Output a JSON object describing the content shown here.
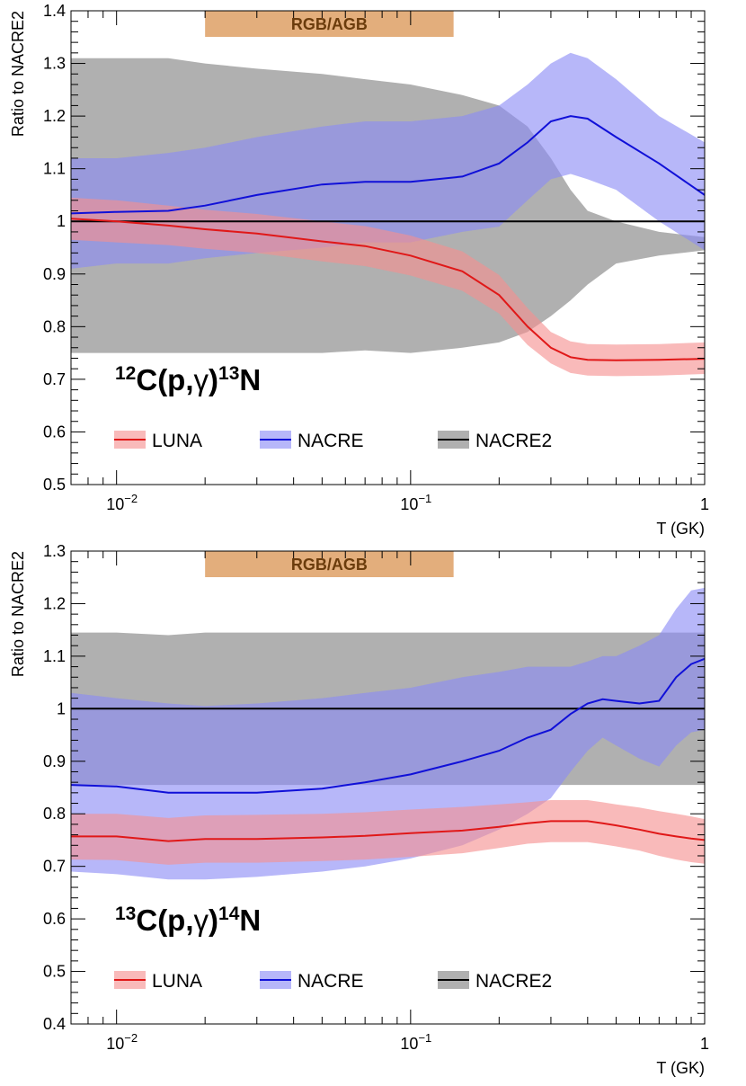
{
  "chart_data": [
    {
      "type": "area",
      "reaction": {
        "mass_a": "12",
        "base_a": "C(p,",
        "gamma": "γ",
        "close": ")",
        "mass_b": "13",
        "base_b": "N"
      },
      "ylabel": "Ratio to NACRE2",
      "xlabel": "T (GK)",
      "xscale": "log",
      "xlim": [
        0.007,
        1
      ],
      "ylim": [
        0.5,
        1.4
      ],
      "yticks": [
        0.5,
        0.6,
        0.7,
        0.8,
        0.9,
        1.0,
        1.1,
        1.2,
        1.3,
        1.4
      ],
      "ytick_labels": [
        "0.5",
        "0.6",
        "0.7",
        "0.8",
        "0.9",
        "1",
        "1.1",
        "1.2",
        "1.3",
        "1.4"
      ],
      "xtick_labels": [
        {
          "value": 0.01,
          "base": "10",
          "exp": "−2"
        },
        {
          "value": 0.1,
          "base": "10",
          "exp": "−1"
        },
        {
          "value": 1,
          "base": "1",
          "exp": ""
        }
      ],
      "banner": {
        "label": "RGB/AGB",
        "xrange": [
          0.02,
          0.14
        ],
        "color": "#e3ae7c",
        "text_color": "#6b3c0c"
      },
      "legend": [
        "LUNA",
        "NACRE",
        "NACRE2"
      ],
      "series": [
        {
          "name": "NACRE2",
          "line_color": "#000000",
          "band_color": "#b0b0b0",
          "x": [
            0.007,
            0.01,
            0.015,
            0.02,
            0.03,
            0.05,
            0.07,
            0.1,
            0.15,
            0.2,
            0.25,
            0.3,
            0.35,
            0.4,
            0.5,
            0.7,
            1.0
          ],
          "center": [
            1,
            1,
            1,
            1,
            1,
            1,
            1,
            1,
            1,
            1,
            1,
            1,
            1,
            1,
            1,
            1,
            1
          ],
          "lower": [
            0.75,
            0.75,
            0.75,
            0.75,
            0.75,
            0.75,
            0.755,
            0.75,
            0.76,
            0.77,
            0.79,
            0.82,
            0.85,
            0.88,
            0.92,
            0.935,
            0.945
          ],
          "upper": [
            1.31,
            1.31,
            1.31,
            1.3,
            1.29,
            1.28,
            1.27,
            1.26,
            1.24,
            1.22,
            1.18,
            1.12,
            1.06,
            1.02,
            1.0,
            0.98,
            0.97
          ]
        },
        {
          "name": "NACRE",
          "line_color": "#1010d8",
          "band_color": "#8a8af5",
          "x": [
            0.007,
            0.01,
            0.015,
            0.02,
            0.03,
            0.05,
            0.07,
            0.1,
            0.15,
            0.2,
            0.25,
            0.3,
            0.35,
            0.4,
            0.5,
            0.7,
            1.0
          ],
          "center": [
            1.015,
            1.018,
            1.02,
            1.03,
            1.05,
            1.07,
            1.075,
            1.075,
            1.085,
            1.11,
            1.15,
            1.19,
            1.2,
            1.195,
            1.16,
            1.11,
            1.05
          ],
          "lower": [
            0.91,
            0.92,
            0.92,
            0.93,
            0.94,
            0.95,
            0.96,
            0.96,
            0.98,
            0.99,
            1.04,
            1.08,
            1.09,
            1.08,
            1.06,
            1.0,
            0.945
          ],
          "upper": [
            1.12,
            1.12,
            1.13,
            1.14,
            1.16,
            1.18,
            1.19,
            1.19,
            1.2,
            1.22,
            1.26,
            1.3,
            1.32,
            1.31,
            1.27,
            1.2,
            1.15
          ]
        },
        {
          "name": "LUNA",
          "line_color": "#e01818",
          "band_color": "#f59090",
          "x": [
            0.007,
            0.01,
            0.015,
            0.02,
            0.03,
            0.05,
            0.07,
            0.1,
            0.15,
            0.2,
            0.25,
            0.3,
            0.35,
            0.4,
            0.5,
            0.7,
            1.0
          ],
          "center": [
            1.005,
            1.0,
            0.992,
            0.985,
            0.977,
            0.962,
            0.953,
            0.935,
            0.905,
            0.86,
            0.8,
            0.76,
            0.742,
            0.737,
            0.736,
            0.737,
            0.739
          ],
          "lower": [
            0.965,
            0.96,
            0.955,
            0.948,
            0.94,
            0.924,
            0.915,
            0.897,
            0.868,
            0.825,
            0.765,
            0.73,
            0.712,
            0.707,
            0.706,
            0.707,
            0.71
          ],
          "upper": [
            1.045,
            1.04,
            1.03,
            1.022,
            1.014,
            1.0,
            0.991,
            0.973,
            0.943,
            0.898,
            0.835,
            0.79,
            0.772,
            0.767,
            0.766,
            0.767,
            0.77
          ]
        }
      ]
    },
    {
      "type": "area",
      "reaction": {
        "mass_a": "13",
        "base_a": "C(p,",
        "gamma": "γ",
        "close": ")",
        "mass_b": "14",
        "base_b": "N"
      },
      "ylabel": "Ratio to NACRE2",
      "xlabel": "T (GK)",
      "xscale": "log",
      "xlim": [
        0.007,
        1
      ],
      "ylim": [
        0.4,
        1.3
      ],
      "yticks": [
        0.4,
        0.5,
        0.6,
        0.7,
        0.8,
        0.9,
        1.0,
        1.1,
        1.2,
        1.3
      ],
      "ytick_labels": [
        "0.4",
        "0.5",
        "0.6",
        "0.7",
        "0.8",
        "0.9",
        "1",
        "1.1",
        "1.2",
        "1.3"
      ],
      "xtick_labels": [
        {
          "value": 0.01,
          "base": "10",
          "exp": "−2"
        },
        {
          "value": 0.1,
          "base": "10",
          "exp": "−1"
        },
        {
          "value": 1,
          "base": "1",
          "exp": ""
        }
      ],
      "banner": {
        "label": "RGB/AGB",
        "xrange": [
          0.02,
          0.14
        ],
        "color": "#e3ae7c",
        "text_color": "#6b3c0c"
      },
      "legend": [
        "LUNA",
        "NACRE",
        "NACRE2"
      ],
      "series": [
        {
          "name": "NACRE2",
          "line_color": "#000000",
          "band_color": "#b0b0b0",
          "x": [
            0.007,
            0.01,
            0.015,
            0.02,
            0.03,
            0.05,
            0.07,
            0.1,
            0.15,
            0.2,
            0.25,
            0.3,
            0.35,
            0.4,
            0.45,
            0.5,
            0.6,
            0.7,
            0.8,
            0.9,
            1.0
          ],
          "center": [
            1,
            1,
            1,
            1,
            1,
            1,
            1,
            1,
            1,
            1,
            1,
            1,
            1,
            1,
            1,
            1,
            1,
            1,
            1,
            1,
            1
          ],
          "lower": [
            0.855,
            0.855,
            0.855,
            0.855,
            0.855,
            0.855,
            0.855,
            0.855,
            0.855,
            0.855,
            0.855,
            0.855,
            0.855,
            0.855,
            0.855,
            0.855,
            0.855,
            0.855,
            0.855,
            0.855,
            0.855
          ],
          "upper": [
            1.145,
            1.145,
            1.14,
            1.145,
            1.145,
            1.145,
            1.145,
            1.145,
            1.145,
            1.145,
            1.145,
            1.145,
            1.145,
            1.145,
            1.145,
            1.145,
            1.145,
            1.145,
            1.145,
            1.145,
            1.145
          ]
        },
        {
          "name": "NACRE",
          "line_color": "#1010d8",
          "band_color": "#8a8af5",
          "x": [
            0.007,
            0.01,
            0.015,
            0.02,
            0.03,
            0.05,
            0.07,
            0.1,
            0.15,
            0.2,
            0.25,
            0.3,
            0.35,
            0.4,
            0.45,
            0.5,
            0.6,
            0.7,
            0.8,
            0.9,
            1.0
          ],
          "center": [
            0.855,
            0.852,
            0.84,
            0.84,
            0.84,
            0.848,
            0.86,
            0.875,
            0.9,
            0.92,
            0.945,
            0.96,
            0.99,
            1.01,
            1.018,
            1.015,
            1.01,
            1.015,
            1.06,
            1.085,
            1.095
          ],
          "lower": [
            0.69,
            0.685,
            0.675,
            0.675,
            0.68,
            0.69,
            0.7,
            0.715,
            0.74,
            0.77,
            0.8,
            0.83,
            0.88,
            0.92,
            0.945,
            0.93,
            0.905,
            0.89,
            0.93,
            0.955,
            0.96
          ],
          "upper": [
            1.03,
            1.02,
            1.01,
            1.005,
            1.01,
            1.02,
            1.03,
            1.04,
            1.06,
            1.07,
            1.08,
            1.08,
            1.08,
            1.09,
            1.1,
            1.1,
            1.12,
            1.14,
            1.19,
            1.225,
            1.23
          ]
        },
        {
          "name": "LUNA",
          "line_color": "#e01818",
          "band_color": "#f59090",
          "x": [
            0.007,
            0.01,
            0.015,
            0.02,
            0.03,
            0.05,
            0.07,
            0.1,
            0.15,
            0.2,
            0.25,
            0.3,
            0.35,
            0.4,
            0.45,
            0.5,
            0.6,
            0.7,
            0.8,
            0.9,
            1.0
          ],
          "center": [
            0.757,
            0.757,
            0.748,
            0.752,
            0.752,
            0.755,
            0.758,
            0.763,
            0.768,
            0.775,
            0.782,
            0.786,
            0.786,
            0.786,
            0.782,
            0.778,
            0.77,
            0.762,
            0.757,
            0.753,
            0.75
          ],
          "lower": [
            0.713,
            0.712,
            0.703,
            0.707,
            0.707,
            0.71,
            0.713,
            0.718,
            0.725,
            0.735,
            0.743,
            0.746,
            0.746,
            0.746,
            0.742,
            0.738,
            0.73,
            0.72,
            0.713,
            0.708,
            0.705
          ],
          "upper": [
            0.8,
            0.8,
            0.792,
            0.797,
            0.798,
            0.8,
            0.803,
            0.808,
            0.813,
            0.818,
            0.822,
            0.826,
            0.826,
            0.826,
            0.822,
            0.818,
            0.812,
            0.805,
            0.8,
            0.795,
            0.79
          ]
        }
      ]
    }
  ]
}
